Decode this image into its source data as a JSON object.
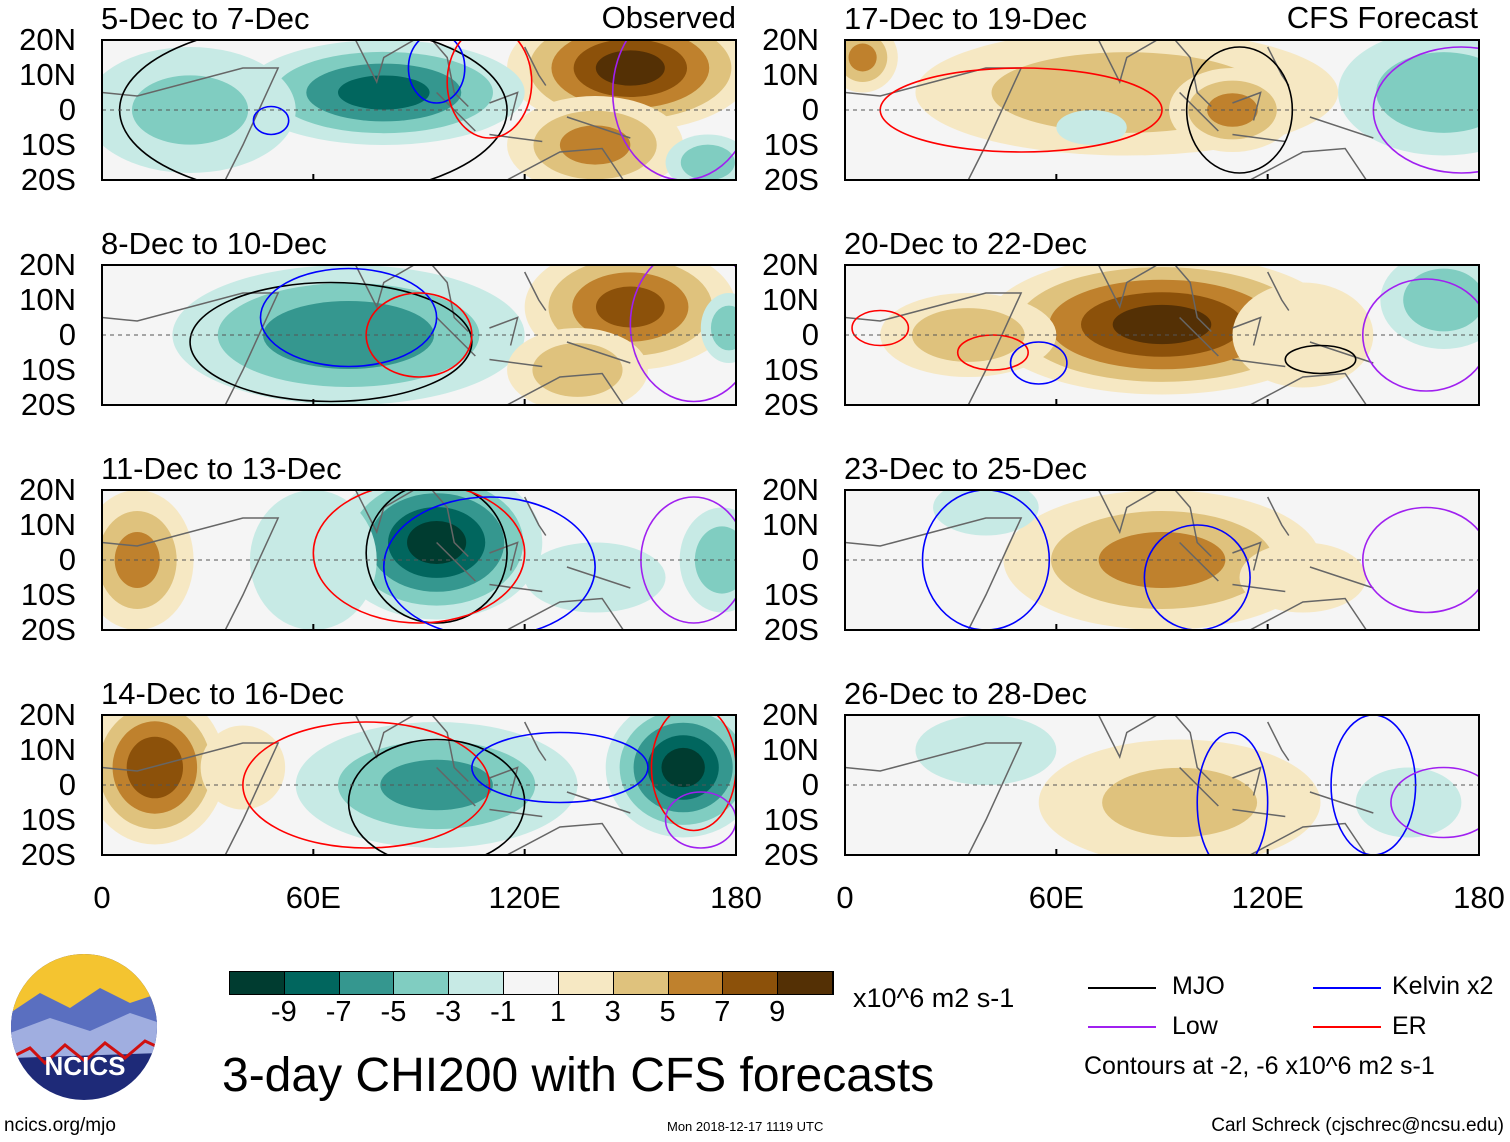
{
  "header": {
    "observed_label": "Observed",
    "forecast_label": "CFS Forecast"
  },
  "y_ticks": [
    "20N",
    "10N",
    "0",
    "10S",
    "20S"
  ],
  "x_ticks": [
    "0",
    "60E",
    "120E",
    "180"
  ],
  "colorbar": {
    "labels": [
      "-9",
      "-7",
      "-5",
      "-3",
      "-1",
      "1",
      "3",
      "5",
      "7",
      "9"
    ],
    "colors": [
      "#003c30",
      "#01665e",
      "#35978f",
      "#80cdc1",
      "#c7eae5",
      "#f5f5f5",
      "#f6e8c3",
      "#dfc27d",
      "#bf812d",
      "#8c510a",
      "#543005"
    ],
    "units": "x10^6 m2 s-1"
  },
  "title": "3-day CHI200 with CFS forecasts",
  "legend": {
    "items": [
      {
        "label": "MJO",
        "color": "#000000"
      },
      {
        "label": "Kelvin x2",
        "color": "#0000ff"
      },
      {
        "label": "Low",
        "color": "#a020f0"
      },
      {
        "label": "ER",
        "color": "#ff0000"
      }
    ],
    "note": "Contours at -2, -6 x10^6 m2 s-1"
  },
  "logo": {
    "text": "NCICS"
  },
  "footer": {
    "left": "ncics.org/mjo",
    "center": "Mon 2018-12-17 1119 UTC",
    "right": "Carl Schreck (cjschrec@ncsu.edu)"
  },
  "chart_data": {
    "type": "heatmap",
    "variable": "CHI200 anomaly",
    "lon_range": [
      0,
      180
    ],
    "lat_range": [
      -20,
      20
    ],
    "panels": [
      {
        "title": "5-Dec to 7-Dec",
        "kind": "Observed",
        "features": [
          {
            "lon": 150,
            "lat": 12,
            "rlon": 35,
            "rlat": 18,
            "value": 10
          },
          {
            "lon": 140,
            "lat": -10,
            "rlon": 25,
            "rlat": 14,
            "value": 6
          },
          {
            "lon": 80,
            "lat": 5,
            "rlon": 40,
            "rlat": 15,
            "value": -8
          },
          {
            "lon": 25,
            "lat": 0,
            "rlon": 30,
            "rlat": 18,
            "value": -4
          },
          {
            "lon": 172,
            "lat": -15,
            "rlon": 12,
            "rlat": 8,
            "value": -5
          }
        ],
        "contours": [
          {
            "type": "MJO",
            "lon": 60,
            "lat": 0,
            "rlon": 55,
            "rlat": 25
          },
          {
            "type": "Kelvin",
            "lon": 95,
            "lat": 12,
            "rlon": 8,
            "rlat": 10
          },
          {
            "type": "Kelvin",
            "lon": 48,
            "lat": -3,
            "rlon": 5,
            "rlat": 4
          },
          {
            "type": "ER",
            "lon": 110,
            "lat": 8,
            "rlon": 12,
            "rlat": 16
          },
          {
            "type": "Low",
            "lon": 165,
            "lat": 5,
            "rlon": 20,
            "rlat": 25
          }
        ]
      },
      {
        "title": "8-Dec to 10-Dec",
        "kind": "Observed",
        "features": [
          {
            "lon": 70,
            "lat": 0,
            "rlon": 50,
            "rlat": 20,
            "value": -7
          },
          {
            "lon": 150,
            "lat": 8,
            "rlon": 30,
            "rlat": 18,
            "value": 8
          },
          {
            "lon": 135,
            "lat": -10,
            "rlon": 20,
            "rlat": 12,
            "value": 5
          },
          {
            "lon": 178,
            "lat": 2,
            "rlon": 8,
            "rlat": 10,
            "value": -5
          }
        ],
        "contours": [
          {
            "type": "MJO",
            "lon": 65,
            "lat": -2,
            "rlon": 40,
            "rlat": 17
          },
          {
            "type": "Kelvin",
            "lon": 70,
            "lat": 5,
            "rlon": 25,
            "rlat": 14
          },
          {
            "type": "ER",
            "lon": 90,
            "lat": 0,
            "rlon": 15,
            "rlat": 12
          },
          {
            "type": "Low",
            "lon": 168,
            "lat": 3,
            "rlon": 18,
            "rlat": 22
          }
        ]
      },
      {
        "title": "11-Dec to 13-Dec",
        "kind": "Observed",
        "features": [
          {
            "lon": 95,
            "lat": 5,
            "rlon": 30,
            "rlat": 22,
            "value": -10
          },
          {
            "lon": 10,
            "lat": 0,
            "rlon": 16,
            "rlat": 20,
            "value": 6
          },
          {
            "lon": 176,
            "lat": 0,
            "rlon": 12,
            "rlat": 15,
            "value": -5
          },
          {
            "lon": 60,
            "lat": 0,
            "rlon": 18,
            "rlat": 20,
            "value": -3
          },
          {
            "lon": 140,
            "lat": -5,
            "rlon": 20,
            "rlat": 10,
            "value": -2
          }
        ],
        "contours": [
          {
            "type": "MJO",
            "lon": 95,
            "lat": 2,
            "rlon": 20,
            "rlat": 20
          },
          {
            "type": "ER",
            "lon": 90,
            "lat": 2,
            "rlon": 30,
            "rlat": 20
          },
          {
            "type": "Kelvin",
            "lon": 110,
            "lat": -2,
            "rlon": 30,
            "rlat": 20
          },
          {
            "type": "Low",
            "lon": 168,
            "lat": 0,
            "rlon": 15,
            "rlat": 18
          }
        ]
      },
      {
        "title": "14-Dec to 16-Dec",
        "kind": "Observed",
        "features": [
          {
            "lon": 15,
            "lat": 5,
            "rlon": 20,
            "rlat": 22,
            "value": 9
          },
          {
            "lon": 95,
            "lat": 0,
            "rlon": 40,
            "rlat": 18,
            "value": -6
          },
          {
            "lon": 165,
            "lat": 5,
            "rlon": 22,
            "rlat": 20,
            "value": -10
          },
          {
            "lon": 40,
            "lat": 5,
            "rlon": 12,
            "rlat": 12,
            "value": 2
          }
        ],
        "contours": [
          {
            "type": "ER",
            "lon": 75,
            "lat": 0,
            "rlon": 35,
            "rlat": 18
          },
          {
            "type": "MJO",
            "lon": 95,
            "lat": -5,
            "rlon": 25,
            "rlat": 18
          },
          {
            "type": "Kelvin",
            "lon": 130,
            "lat": 5,
            "rlon": 25,
            "rlat": 10
          },
          {
            "type": "ER",
            "lon": 168,
            "lat": 5,
            "rlon": 12,
            "rlat": 18
          },
          {
            "type": "Low",
            "lon": 170,
            "lat": -10,
            "rlon": 10,
            "rlat": 8
          }
        ]
      },
      {
        "title": "17-Dec to 19-Dec",
        "kind": "CFS Forecast",
        "features": [
          {
            "lon": 80,
            "lat": 5,
            "rlon": 60,
            "rlat": 18,
            "value": 5
          },
          {
            "lon": 5,
            "lat": 15,
            "rlon": 10,
            "rlat": 10,
            "value": 6
          },
          {
            "lon": 110,
            "lat": 0,
            "rlon": 18,
            "rlat": 12,
            "value": 6
          },
          {
            "lon": 170,
            "lat": 5,
            "rlon": 30,
            "rlat": 18,
            "value": -5
          },
          {
            "lon": 70,
            "lat": -5,
            "rlon": 10,
            "rlat": 5,
            "value": -2
          }
        ],
        "contours": [
          {
            "type": "ER",
            "lon": 50,
            "lat": 0,
            "rlon": 40,
            "rlat": 12
          },
          {
            "type": "MJO",
            "lon": 112,
            "lat": 0,
            "rlon": 15,
            "rlat": 18
          },
          {
            "type": "Low",
            "lon": 175,
            "lat": 0,
            "rlon": 25,
            "rlat": 18
          }
        ]
      },
      {
        "title": "20-Dec to 22-Dec",
        "kind": "CFS Forecast",
        "features": [
          {
            "lon": 90,
            "lat": 3,
            "rlon": 50,
            "rlat": 20,
            "value": 10
          },
          {
            "lon": 35,
            "lat": 0,
            "rlon": 25,
            "rlat": 12,
            "value": 5
          },
          {
            "lon": 170,
            "lat": 10,
            "rlon": 18,
            "rlat": 14,
            "value": -5
          },
          {
            "lon": 130,
            "lat": 0,
            "rlon": 20,
            "rlat": 15,
            "value": 2
          }
        ],
        "contours": [
          {
            "type": "ER",
            "lon": 10,
            "lat": 2,
            "rlon": 8,
            "rlat": 5
          },
          {
            "type": "ER",
            "lon": 42,
            "lat": -5,
            "rlon": 10,
            "rlat": 5
          },
          {
            "type": "Kelvin",
            "lon": 55,
            "lat": -8,
            "rlon": 8,
            "rlat": 6
          },
          {
            "type": "MJO",
            "lon": 135,
            "lat": -7,
            "rlon": 10,
            "rlat": 4
          },
          {
            "type": "Low",
            "lon": 165,
            "lat": 0,
            "rlon": 18,
            "rlat": 16
          }
        ]
      },
      {
        "title": "23-Dec to 25-Dec",
        "kind": "CFS Forecast",
        "features": [
          {
            "lon": 90,
            "lat": 0,
            "rlon": 45,
            "rlat": 20,
            "value": 6
          },
          {
            "lon": 40,
            "lat": 15,
            "rlon": 15,
            "rlat": 8,
            "value": -3
          },
          {
            "lon": 130,
            "lat": -5,
            "rlon": 18,
            "rlat": 10,
            "value": 3
          }
        ],
        "contours": [
          {
            "type": "Kelvin",
            "lon": 40,
            "lat": 0,
            "rlon": 18,
            "rlat": 20
          },
          {
            "type": "Kelvin",
            "lon": 100,
            "lat": -5,
            "rlon": 15,
            "rlat": 15
          },
          {
            "type": "Low",
            "lon": 165,
            "lat": 0,
            "rlon": 18,
            "rlat": 15
          }
        ]
      },
      {
        "title": "26-Dec to 28-Dec",
        "kind": "CFS Forecast",
        "features": [
          {
            "lon": 95,
            "lat": -5,
            "rlon": 40,
            "rlat": 18,
            "value": 4
          },
          {
            "lon": 40,
            "lat": 10,
            "rlon": 20,
            "rlat": 10,
            "value": -3
          },
          {
            "lon": 160,
            "lat": -5,
            "rlon": 15,
            "rlat": 10,
            "value": -3
          }
        ],
        "contours": [
          {
            "type": "Kelvin",
            "lon": 110,
            "lat": -5,
            "rlon": 10,
            "rlat": 20
          },
          {
            "type": "Kelvin",
            "lon": 150,
            "lat": 0,
            "rlon": 12,
            "rlat": 20
          },
          {
            "type": "Low",
            "lon": 170,
            "lat": -5,
            "rlon": 15,
            "rlat": 10
          }
        ]
      }
    ]
  }
}
